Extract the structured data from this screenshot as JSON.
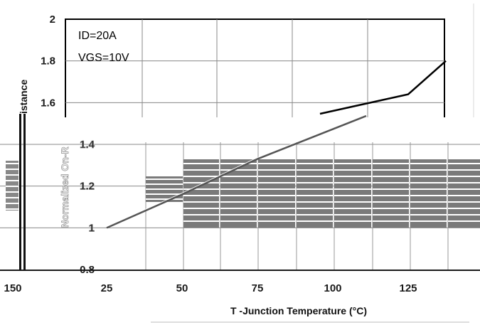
{
  "chart_data": {
    "type": "line",
    "title": "",
    "xlabel": "T -Junction Temperature (°C)",
    "ylabel_top": "istance",
    "ylabel_bottom": "Normalized On-R",
    "annotation_lines": [
      "ID=20A",
      "VGS=10V"
    ],
    "x_ticks": [
      25,
      50,
      75,
      100,
      125
    ],
    "left_edge_tick": "150",
    "y_ticks": [
      {
        "value": 0.8,
        "label": "0.8"
      },
      {
        "value": 1.0,
        "label": "1"
      },
      {
        "value": 1.2,
        "label": "1.2"
      },
      {
        "value": 1.4,
        "label": "1.4"
      },
      {
        "value": 1.6,
        "label": "1.6"
      },
      {
        "value": 1.8,
        "label": "1.8"
      },
      {
        "value": 2.0,
        "label": "2"
      }
    ],
    "xlim": [
      25,
      150
    ],
    "ylim": [
      0.8,
      2.0
    ],
    "grid": true,
    "series": [
      {
        "x": [
          25,
          50,
          75,
          100,
          125,
          137.5
        ],
        "y": [
          1.0,
          1.16,
          1.33,
          1.49,
          1.64,
          1.8
        ],
        "color": "#000000"
      }
    ]
  }
}
